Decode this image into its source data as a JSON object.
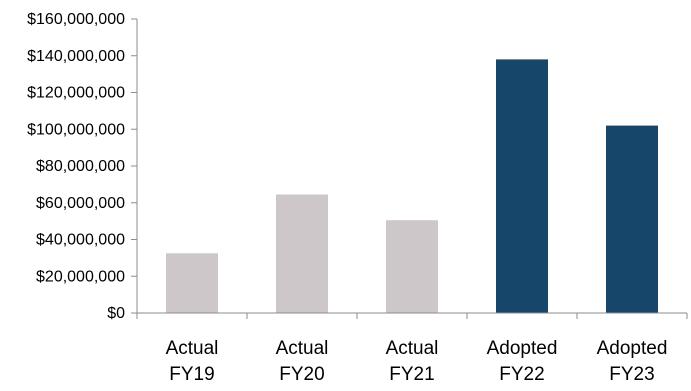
{
  "chart_data": {
    "type": "bar",
    "title": "",
    "xlabel": "",
    "ylabel": "",
    "categories": [
      [
        "Actual",
        "FY19"
      ],
      [
        "Actual",
        "FY20"
      ],
      [
        "Actual",
        "FY21"
      ],
      [
        "Adopted",
        "FY22"
      ],
      [
        "Adopted",
        "FY23"
      ]
    ],
    "values": [
      32500000,
      64500000,
      50500000,
      138000000,
      102000000
    ],
    "bar_colors": [
      "#cdc7c9",
      "#cdc7c9",
      "#cdc7c9",
      "#17466b",
      "#17466b"
    ],
    "ylim": [
      0,
      160000000
    ],
    "yticks": [
      0,
      20000000,
      40000000,
      60000000,
      80000000,
      100000000,
      120000000,
      140000000,
      160000000
    ],
    "ytick_labels": [
      "$0",
      "$20,000,000",
      "$40,000,000",
      "$60,000,000",
      "$80,000,000",
      "$100,000,000",
      "$120,000,000",
      "$140,000,000",
      "$160,000,000"
    ],
    "grid": false,
    "legend": "none",
    "axis_color": "#8c8c8c"
  }
}
